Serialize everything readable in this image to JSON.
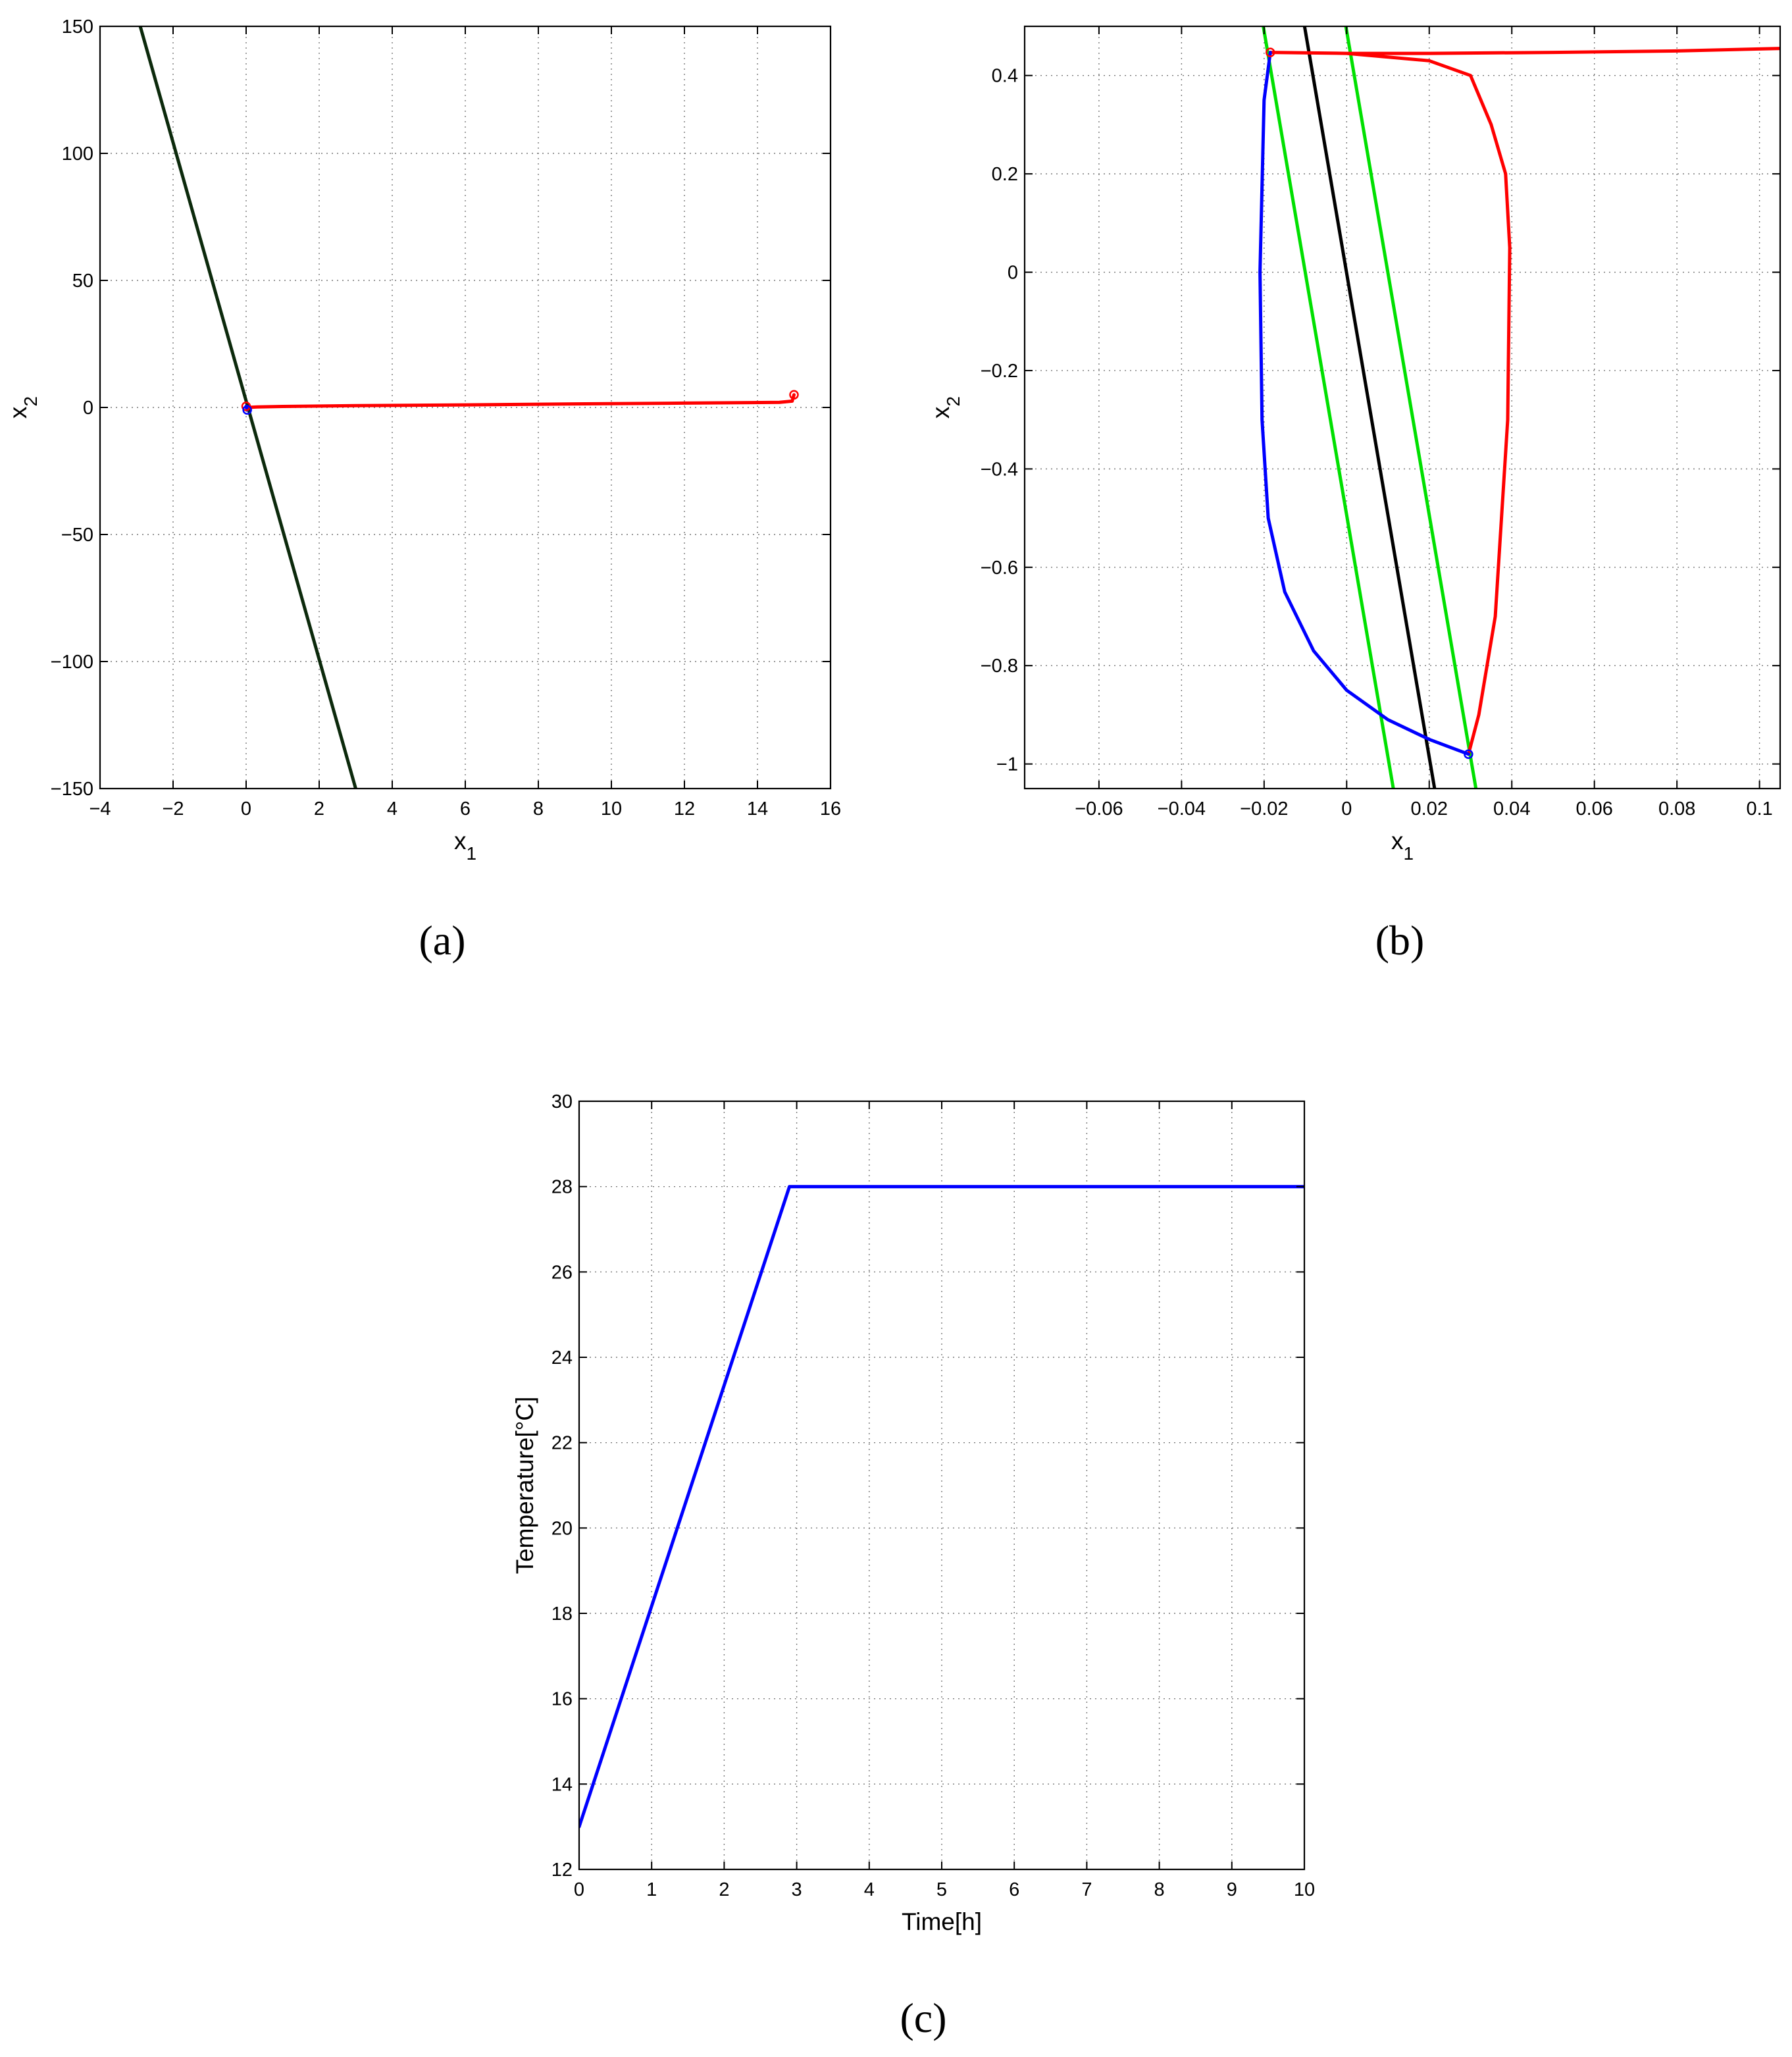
{
  "chart_data": [
    {
      "panel": "(a)",
      "type": "line",
      "title": "",
      "xlabel": "x",
      "xlabel_sub": "1",
      "ylabel": "x",
      "ylabel_sub": "2",
      "xlim": [
        -4,
        16
      ],
      "ylim": [
        -150,
        150
      ],
      "xticks": [
        -4,
        -2,
        0,
        2,
        4,
        6,
        8,
        10,
        12,
        14,
        16
      ],
      "yticks": [
        -150,
        -100,
        -50,
        0,
        50,
        100,
        150
      ],
      "grid": true,
      "series": [
        {
          "color": "#0c2a0c",
          "x": [
            -2.9,
            3.0
          ],
          "y": [
            150,
            -150
          ]
        },
        {
          "color": "#ff0000",
          "x": [
            15.0,
            14.95,
            14.6,
            12,
            9,
            6,
            3,
            1,
            0.3,
            0.05,
            0.0
          ],
          "y": [
            5.0,
            2.5,
            2.0,
            1.7,
            1.4,
            1.0,
            0.7,
            0.4,
            0.2,
            0.0,
            0.0
          ]
        },
        {
          "color": "#0000ff",
          "x": [
            0.0,
            0.02,
            0.03
          ],
          "y": [
            0.45,
            -0.5,
            -0.98
          ]
        }
      ],
      "markers": [
        {
          "color": "#ff0000",
          "x": 15.0,
          "y": 5.0
        },
        {
          "color": "#ff0000",
          "x": 0.0,
          "y": 0.45
        },
        {
          "color": "#0000ff",
          "x": 0.03,
          "y": -0.98
        }
      ]
    },
    {
      "panel": "(b)",
      "type": "line",
      "title": "",
      "xlabel": "x",
      "xlabel_sub": "1",
      "ylabel": "x",
      "ylabel_sub": "2",
      "xlim": [
        -0.078,
        0.105
      ],
      "ylim": [
        -1.05,
        0.5
      ],
      "xticks": [
        -0.06,
        -0.04,
        -0.02,
        0,
        0.02,
        0.04,
        0.06,
        0.08,
        0.1
      ],
      "xtick_labels": [
        "−0.06",
        "−0.04",
        "−0.02",
        "0",
        "0.02",
        "0.04",
        "0.06",
        "0.08",
        "0.1"
      ],
      "yticks": [
        -1,
        -0.8,
        -0.6,
        -0.4,
        -0.2,
        0,
        0.2,
        0.4
      ],
      "ytick_labels": [
        "−1",
        "−0.8",
        "−0.6",
        "−0.4",
        "−0.2",
        "0",
        "0.2",
        "0.4"
      ],
      "grid": true,
      "series": [
        {
          "color": "#000000",
          "x": [
            -0.0102,
            0.0213
          ],
          "y": [
            0.5,
            -1.05
          ]
        },
        {
          "color": "#00e000",
          "x": [
            -0.0202,
            0.0113
          ],
          "y": [
            0.5,
            -1.05
          ]
        },
        {
          "color": "#00e000",
          "x": [
            -0.0002,
            0.0313
          ],
          "y": [
            0.5,
            -1.05
          ]
        },
        {
          "color": "#ff0000",
          "x": [
            0.105,
            0.08,
            0.05,
            0.02,
            0.0,
            -0.0185,
            0.0,
            0.02,
            0.03,
            0.035,
            0.0385,
            0.0395,
            0.039,
            0.036,
            0.032,
            0.0295
          ],
          "y": [
            0.455,
            0.45,
            0.447,
            0.445,
            0.445,
            0.447,
            0.445,
            0.43,
            0.4,
            0.3,
            0.2,
            0.05,
            -0.3,
            -0.7,
            -0.9,
            -0.98
          ]
        },
        {
          "color": "#0000ff",
          "x": [
            -0.0185,
            -0.02,
            -0.021,
            -0.0205,
            -0.019,
            -0.015,
            -0.008,
            0.0,
            0.01,
            0.02,
            0.0295
          ],
          "y": [
            0.447,
            0.35,
            0.0,
            -0.3,
            -0.5,
            -0.65,
            -0.77,
            -0.85,
            -0.91,
            -0.95,
            -0.98
          ]
        }
      ],
      "markers": [
        {
          "color": "#ff0000",
          "x": -0.0185,
          "y": 0.447
        },
        {
          "color": "#0000ff",
          "x": 0.0295,
          "y": -0.98
        }
      ]
    },
    {
      "panel": "(c)",
      "type": "line",
      "title": "",
      "xlabel": "Time[h]",
      "ylabel": "Temperature[°C]",
      "xlim": [
        0,
        10
      ],
      "ylim": [
        12,
        30
      ],
      "xticks": [
        0,
        1,
        2,
        3,
        4,
        5,
        6,
        7,
        8,
        9,
        10
      ],
      "yticks": [
        12,
        14,
        16,
        18,
        20,
        22,
        24,
        26,
        28,
        30
      ],
      "grid": true,
      "series": [
        {
          "color": "#0000ff",
          "x": [
            0,
            2.9,
            3.0,
            10
          ],
          "y": [
            13,
            28,
            28,
            28
          ]
        }
      ],
      "markers": []
    }
  ],
  "captions": [
    "(a)",
    "(b)",
    "(c)"
  ]
}
